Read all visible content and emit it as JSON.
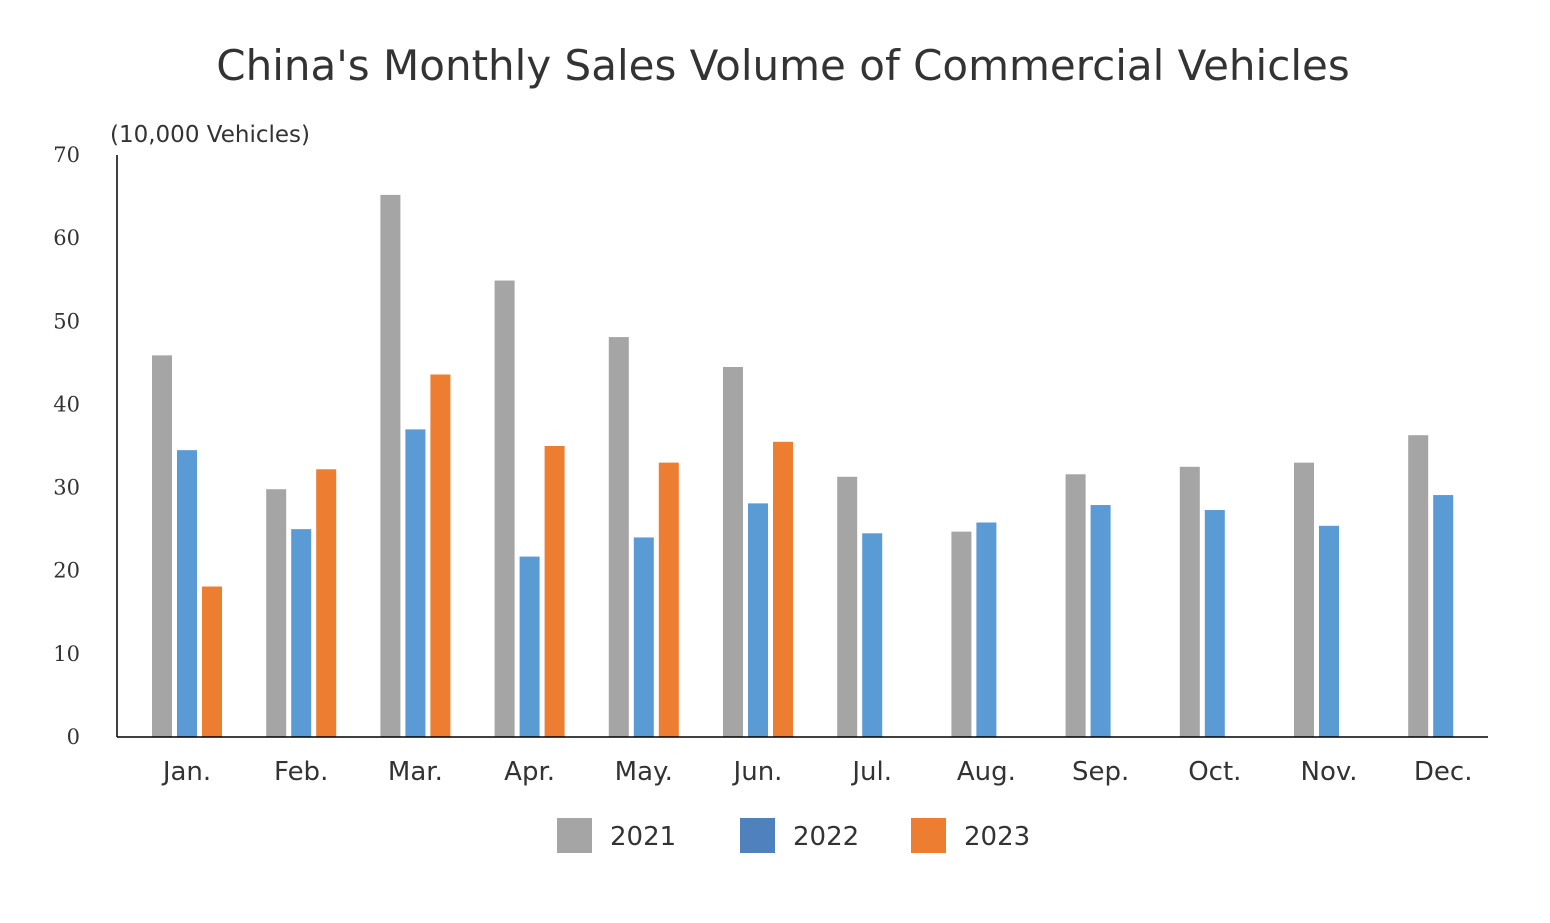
{
  "chart_data": {
    "type": "bar",
    "title": "China's Monthly Sales Volume of Commercial Vehicles",
    "ylabel": "(10,000 Vehicles)",
    "xlabel": "",
    "ylim": [
      0,
      70
    ],
    "yticks": [
      0,
      10,
      20,
      30,
      40,
      50,
      60,
      70
    ],
    "grid": false,
    "legend_position": "bottom-center",
    "categories": [
      "Jan.",
      "Feb.",
      "Mar.",
      "Apr.",
      "May.",
      "Jun.",
      "Jul.",
      "Aug.",
      "Sep.",
      "Oct.",
      "Nov.",
      "Dec."
    ],
    "series": [
      {
        "name": "2021",
        "color": "#a5a5a5",
        "values": [
          45.9,
          29.8,
          65.2,
          54.9,
          48.1,
          44.5,
          31.3,
          24.7,
          31.6,
          32.5,
          33.0,
          36.3
        ]
      },
      {
        "name": "2022",
        "color": "#5b9bd5",
        "values": [
          34.5,
          25.0,
          37.0,
          21.7,
          24.0,
          28.1,
          24.5,
          25.8,
          27.9,
          27.3,
          25.4,
          29.1
        ]
      },
      {
        "name": "2023",
        "color": "#ed7d31",
        "values": [
          18.1,
          32.2,
          43.6,
          35.0,
          33.0,
          35.5,
          null,
          null,
          null,
          null,
          null,
          null
        ]
      }
    ],
    "legend_colors": [
      "#a5a5a5",
      "#4f81bd",
      "#ed7d31"
    ]
  }
}
